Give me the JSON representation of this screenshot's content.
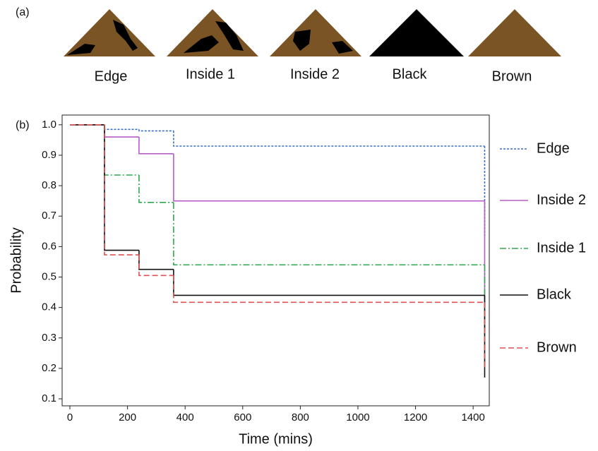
{
  "panel_a": {
    "label": "(a)",
    "items": [
      "Edge",
      "Inside 1",
      "Inside 2",
      "Black",
      "Brown"
    ]
  },
  "chart_data": {
    "type": "line",
    "step": true,
    "panel_label": "(b)",
    "x_label": "Time (mins)",
    "y_label": "Probability",
    "x": [
      0,
      120,
      240,
      360,
      1440
    ],
    "series": [
      {
        "name": "Edge",
        "color": "#3a6fc4",
        "linestyle": "dotted",
        "values": [
          1.0,
          0.985,
          0.98,
          0.93,
          0.635
        ]
      },
      {
        "name": "Inside 2",
        "color": "#b85cc8",
        "linestyle": "solid",
        "values": [
          1.0,
          0.96,
          0.905,
          0.75,
          0.4
        ]
      },
      {
        "name": "Inside 1",
        "color": "#2ea84f",
        "linestyle": "dashdot",
        "values": [
          1.0,
          0.835,
          0.745,
          0.54,
          0.305
        ]
      },
      {
        "name": "Black",
        "color": "#111111",
        "linestyle": "solid",
        "values": [
          1.0,
          0.588,
          0.525,
          0.44,
          0.17
        ]
      },
      {
        "name": "Brown",
        "color": "#e05050",
        "linestyle": "dashed",
        "values": [
          1.0,
          0.573,
          0.505,
          0.417,
          0.195
        ]
      }
    ],
    "xlim": [
      -27,
      1456
    ],
    "ylim": [
      0.077,
      1.032
    ],
    "xticks": [
      0,
      200,
      400,
      600,
      800,
      1000,
      1200,
      1400
    ],
    "yticks": [
      0.1,
      0.2,
      0.3,
      0.4,
      0.5,
      0.6,
      0.7,
      0.8,
      0.9,
      {
        "value": 1,
        "label": "1.0"
      }
    ],
    "legend": "right"
  }
}
